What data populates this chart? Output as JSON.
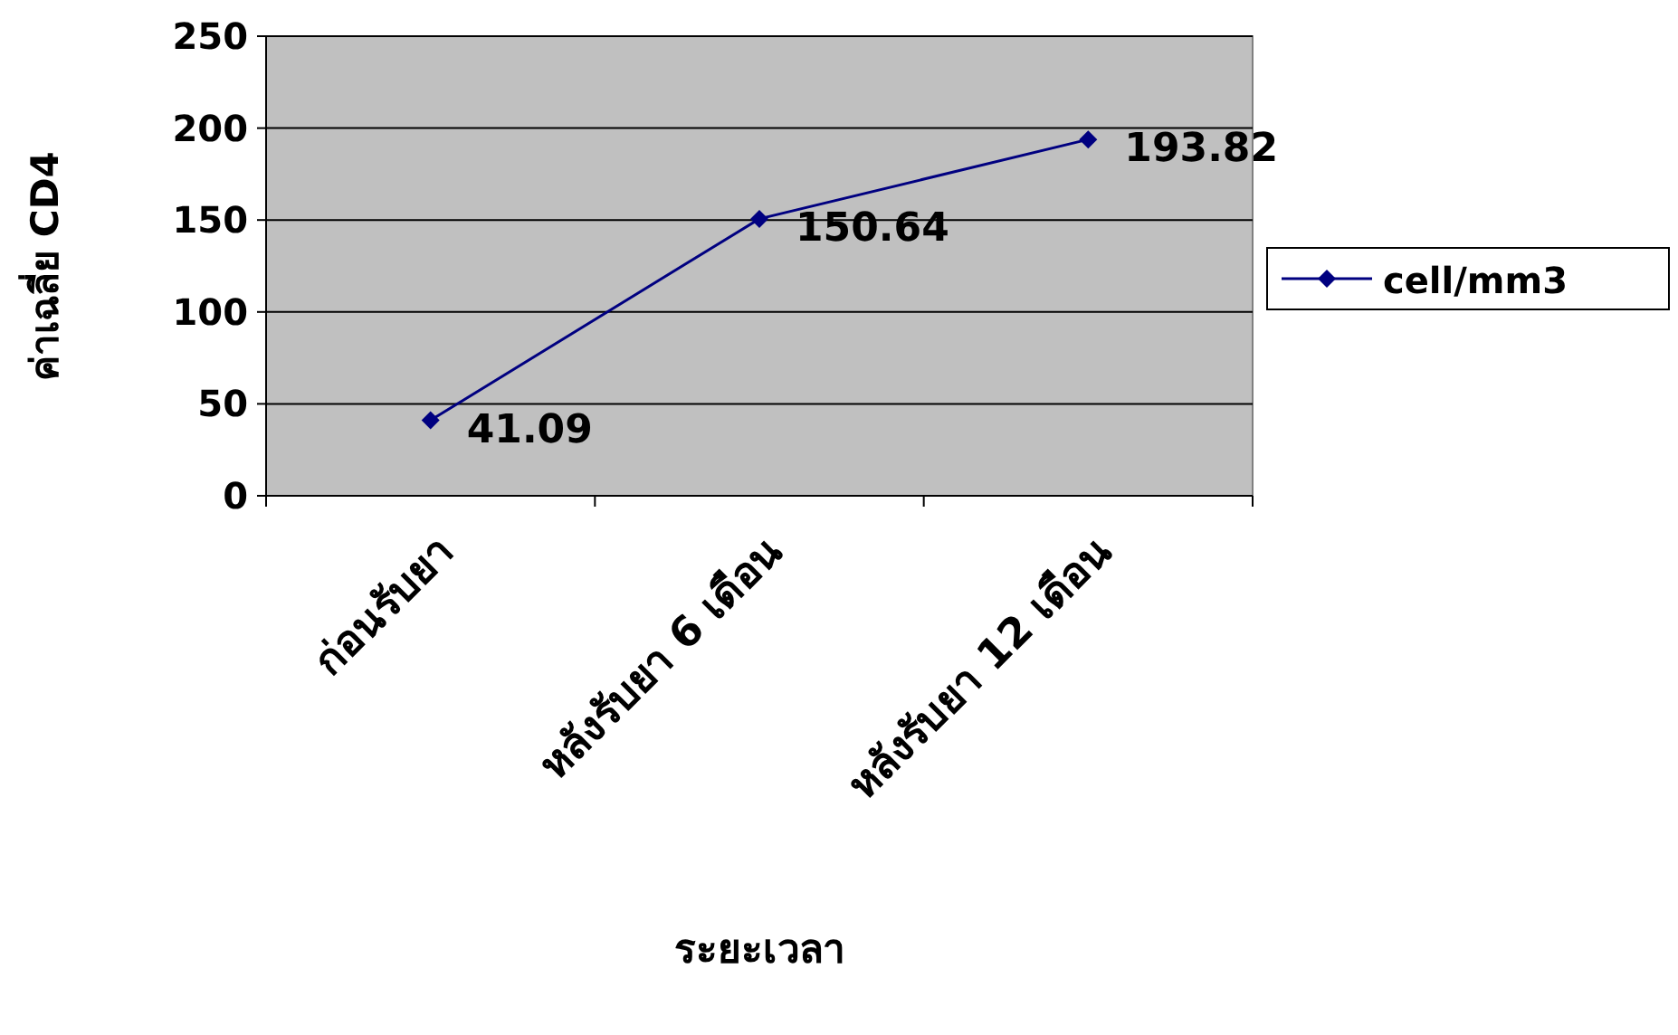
{
  "chart_data": {
    "type": "line",
    "xlabel": "ระยะเวลา",
    "ylabel": "ค่าเฉลี่ย CD4",
    "categories": [
      "ก่อนรับยา",
      "หลังรับยา 6 เดือน",
      "หลังรับยา 12 เดือน"
    ],
    "series": [
      {
        "name": "cell/mm3",
        "color": "#000080",
        "values": [
          41.09,
          150.64,
          193.82
        ]
      }
    ],
    "ylim": [
      0,
      250
    ],
    "yticks": [
      0,
      50,
      100,
      150,
      200,
      250
    ],
    "grid": "y",
    "legend": "right",
    "marker": "diamond",
    "line_style": "solid",
    "data_labels": true
  }
}
